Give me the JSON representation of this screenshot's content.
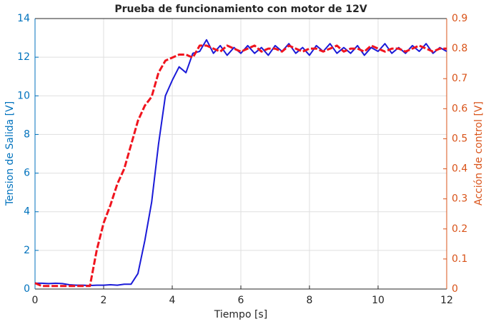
{
  "chart_data": {
    "type": "line",
    "title": "Prueba de funcionamiento con motor de 12V",
    "xlabel": "Tiempo [s]",
    "ylabel": "Tension de Salida [V]",
    "y2label": "Acción de control [V]",
    "x": [
      0,
      0.2,
      0.4,
      0.6,
      0.8,
      1,
      1.2,
      1.4,
      1.6,
      1.8,
      2,
      2.2,
      2.4,
      2.6,
      2.8,
      3,
      3.2,
      3.4,
      3.6,
      3.8,
      4,
      4.2,
      4.4,
      4.6,
      4.8,
      5,
      5.2,
      5.4,
      5.6,
      5.8,
      6,
      6.2,
      6.4,
      6.6,
      6.8,
      7,
      7.2,
      7.4,
      7.6,
      7.8,
      8,
      8.2,
      8.4,
      8.6,
      8.8,
      9,
      9.2,
      9.4,
      9.6,
      9.8,
      10,
      10.2,
      10.4,
      10.6,
      10.8,
      11,
      11.2,
      11.4,
      11.6,
      11.8,
      12
    ],
    "series": [
      {
        "color": "#1a1ad8",
        "axis": "y",
        "values": [
          0.3,
          0.3,
          0.28,
          0.3,
          0.28,
          0.22,
          0.2,
          0.2,
          0.18,
          0.2,
          0.2,
          0.22,
          0.2,
          0.25,
          0.25,
          0.8,
          2.5,
          4.5,
          7.5,
          10,
          10.8,
          11.5,
          11.2,
          12.2,
          12.3,
          12.9,
          12.2,
          12.6,
          12.1,
          12.5,
          12.2,
          12.6,
          12.2,
          12.5,
          12.1,
          12.6,
          12.3,
          12.7,
          12.2,
          12.5,
          12.1,
          12.6,
          12.3,
          12.7,
          12.2,
          12.5,
          12.2,
          12.6,
          12.1,
          12.5,
          12.3,
          12.7,
          12.2,
          12.5,
          12.2,
          12.6,
          12.3,
          12.7,
          12.2,
          12.5,
          12.3
        ]
      },
      {
        "color": "#f0141e",
        "axis": "y2",
        "values": [
          0.02,
          0.01,
          0.01,
          0.01,
          0.01,
          0.01,
          0.01,
          0.01,
          0.01,
          0.13,
          0.22,
          0.28,
          0.35,
          0.4,
          0.48,
          0.56,
          0.61,
          0.64,
          0.72,
          0.76,
          0.77,
          0.78,
          0.78,
          0.77,
          0.81,
          0.81,
          0.8,
          0.79,
          0.81,
          0.8,
          0.79,
          0.8,
          0.81,
          0.79,
          0.8,
          0.8,
          0.79,
          0.81,
          0.8,
          0.79,
          0.8,
          0.8,
          0.79,
          0.8,
          0.81,
          0.79,
          0.8,
          0.8,
          0.79,
          0.81,
          0.8,
          0.79,
          0.8,
          0.8,
          0.79,
          0.8,
          0.81,
          0.8,
          0.79,
          0.8,
          0.8
        ]
      }
    ],
    "xlim": [
      0,
      12
    ],
    "xticks": [
      0,
      2,
      4,
      6,
      8,
      10,
      12
    ],
    "ylim": [
      0,
      14
    ],
    "yticks": [
      0,
      2,
      4,
      6,
      8,
      10,
      12,
      14
    ],
    "y2lim": [
      0,
      0.9
    ],
    "y2ticks": [
      0,
      0.1,
      0.2,
      0.3,
      0.4,
      0.5,
      0.6,
      0.7,
      0.8,
      0.9
    ],
    "ycolor": "#0072bd",
    "y2color": "#d95319",
    "grid": true
  }
}
